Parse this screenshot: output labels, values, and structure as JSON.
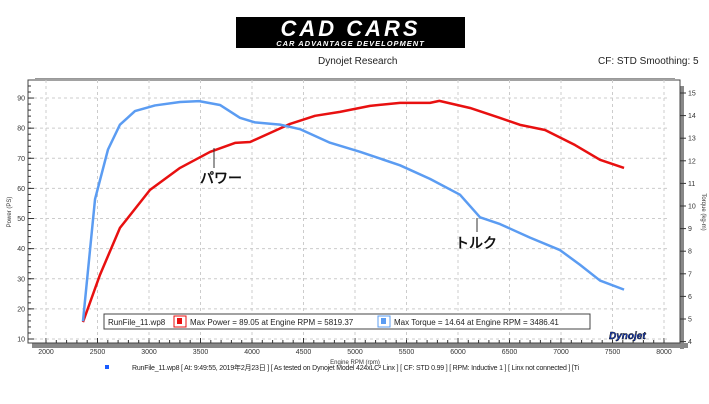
{
  "logo": {
    "title": "CAD CARS",
    "subtitle": "CAR ADVANTAGE DEVELOPMENT"
  },
  "header": {
    "center": "Dynojet Research",
    "right": "CF: STD Smoothing: 5"
  },
  "footer": "RunFile_11.wp8 [ At: 9:49:55, 2019年2月23日 ] [ As tested on Dynojet Model 424xLC² Linx ] [ CF: STD 0.99 ] [ RPM: Inductive 1 ] [ Linx not connected ] [Ti",
  "chart_data": {
    "type": "line",
    "xlabel": "Engine RPM (rpm)",
    "ylabel": "Power (PS)",
    "y2label": "Torque (kg-m)",
    "xlim": [
      1850,
      8100
    ],
    "ylim": [
      9,
      96
    ],
    "y2lim": [
      3.9,
      15.6
    ],
    "xticks": [
      2000,
      2500,
      3000,
      3500,
      4000,
      4500,
      5000,
      5500,
      6000,
      6500,
      7000,
      7500,
      8000
    ],
    "yticks": [
      10,
      20,
      30,
      40,
      50,
      60,
      70,
      80,
      90
    ],
    "y2ticks": [
      4,
      5,
      6,
      7,
      8,
      9,
      10,
      11,
      12,
      13,
      14,
      15
    ],
    "grid": true,
    "legend": {
      "file": "RunFile_11.wp8",
      "power": "Max Power = 89.05 at Engine RPM = 5819.37",
      "torque": "Max Torque = 14.64 at Engine RPM = 3486.41",
      "placement": "bottom"
    },
    "annotations": [
      {
        "text": "パワー",
        "series": "power"
      },
      {
        "text": "トルク",
        "series": "torque"
      }
    ],
    "series": [
      {
        "key": "power",
        "axis": "left",
        "color": "#e81010",
        "x": [
          2359,
          2524,
          2718,
          3010,
          3301,
          3592,
          3835,
          3981,
          4175,
          4369,
          4612,
          4854,
          5146,
          5437,
          5728,
          5819,
          6117,
          6408,
          6602,
          6845,
          7136,
          7379,
          7612
        ],
        "y": [
          15.6,
          31.3,
          46.9,
          59.5,
          66.8,
          72.1,
          75.1,
          75.4,
          78.4,
          81.4,
          84.1,
          85.4,
          87.4,
          88.4,
          88.4,
          89.05,
          86.7,
          83.4,
          81.1,
          79.4,
          74.4,
          69.5,
          66.8
        ]
      },
      {
        "key": "torque",
        "axis": "right",
        "color": "#5b9cf2",
        "x": [
          2359,
          2476,
          2602,
          2718,
          2864,
          3058,
          3301,
          3486,
          3689,
          3883,
          4029,
          4272,
          4466,
          4757,
          5049,
          5437,
          5728,
          6019,
          6214,
          6408,
          6699,
          6990,
          7184,
          7379,
          7612
        ],
        "y": [
          4.9,
          10.3,
          12.5,
          13.6,
          14.2,
          14.45,
          14.6,
          14.64,
          14.47,
          13.9,
          13.7,
          13.6,
          13.4,
          12.8,
          12.4,
          11.8,
          11.2,
          10.5,
          9.5,
          9.2,
          8.6,
          8.05,
          7.4,
          6.7,
          6.3
        ]
      }
    ]
  },
  "brand": "Dynojet"
}
